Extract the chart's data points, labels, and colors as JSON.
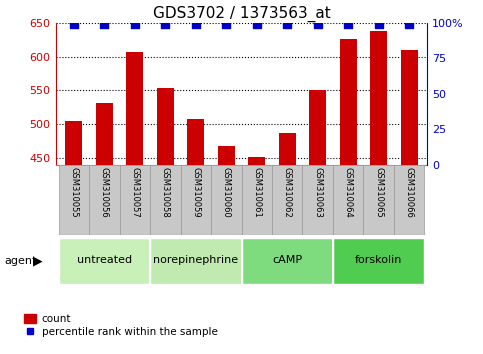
{
  "title": "GDS3702 / 1373563_at",
  "samples": [
    "GSM310055",
    "GSM310056",
    "GSM310057",
    "GSM310058",
    "GSM310059",
    "GSM310060",
    "GSM310061",
    "GSM310062",
    "GSM310063",
    "GSM310064",
    "GSM310065",
    "GSM310066"
  ],
  "counts": [
    505,
    532,
    607,
    553,
    507,
    467,
    452,
    487,
    551,
    627,
    638,
    610
  ],
  "percentiles": [
    99,
    99,
    99,
    99,
    99,
    99,
    99,
    99,
    99,
    99,
    99,
    99
  ],
  "ylim_left": [
    440,
    650
  ],
  "ylim_right": [
    0,
    100
  ],
  "yticks_left": [
    450,
    500,
    550,
    600,
    650
  ],
  "yticks_right": [
    0,
    25,
    50,
    75,
    100
  ],
  "bar_color": "#cc0000",
  "dot_color": "#0000cc",
  "plot_bg_color": "#ffffff",
  "agent_groups": [
    {
      "label": "untreated",
      "start": 0,
      "end": 3
    },
    {
      "label": "norepinephrine",
      "start": 3,
      "end": 6
    },
    {
      "label": "cAMP",
      "start": 6,
      "end": 9
    },
    {
      "label": "forskolin",
      "start": 9,
      "end": 12
    }
  ],
  "group_colors": [
    "#c8f0c0",
    "#c8f0c0",
    "#7ed87e",
    "#5ec85e"
  ],
  "legend_count_label": "count",
  "legend_percentile_label": "percentile rank within the sample",
  "agent_label": "agent",
  "left_tick_color": "#cc0000",
  "right_tick_color": "#0000cc",
  "title_fontsize": 11,
  "bar_width": 0.55,
  "dot_size": 35,
  "sample_box_color": "#c8c8c8",
  "sample_box_edge_color": "#999999"
}
